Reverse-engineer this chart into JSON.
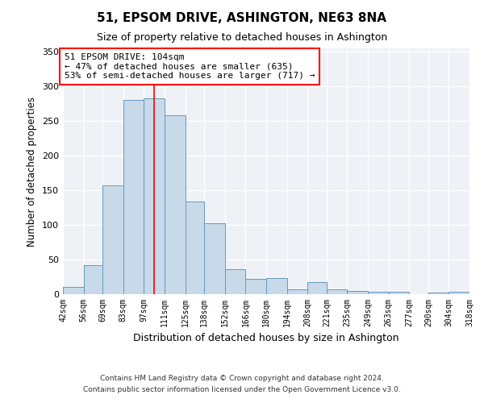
{
  "title": "51, EPSOM DRIVE, ASHINGTON, NE63 8NA",
  "subtitle": "Size of property relative to detached houses in Ashington",
  "xlabel": "Distribution of detached houses by size in Ashington",
  "ylabel": "Number of detached properties",
  "bin_edges": [
    42,
    56,
    69,
    83,
    97,
    111,
    125,
    138,
    152,
    166,
    180,
    194,
    208,
    221,
    235,
    249,
    263,
    277,
    290,
    304,
    318
  ],
  "bin_labels": [
    "42sqm",
    "56sqm",
    "69sqm",
    "83sqm",
    "97sqm",
    "111sqm",
    "125sqm",
    "138sqm",
    "152sqm",
    "166sqm",
    "180sqm",
    "194sqm",
    "208sqm",
    "221sqm",
    "235sqm",
    "249sqm",
    "263sqm",
    "277sqm",
    "290sqm",
    "304sqm",
    "318sqm"
  ],
  "counts": [
    10,
    42,
    157,
    281,
    283,
    258,
    134,
    103,
    36,
    22,
    23,
    7,
    18,
    7,
    5,
    4,
    3,
    0,
    2,
    3
  ],
  "bar_color": "#c8daea",
  "bar_edge_color": "#6699bb",
  "property_value": 104,
  "vline_color": "red",
  "annotation_line1": "51 EPSOM DRIVE: 104sqm",
  "annotation_line2": "← 47% of detached houses are smaller (635)",
  "annotation_line3": "53% of semi-detached houses are larger (717) →",
  "annotation_box_color": "white",
  "annotation_box_edge_color": "red",
  "ylim": [
    0,
    355
  ],
  "yticks": [
    0,
    50,
    100,
    150,
    200,
    250,
    300,
    350
  ],
  "background_color": "#ffffff",
  "plot_bg_color": "#eef2f7",
  "footnote1": "Contains HM Land Registry data © Crown copyright and database right 2024.",
  "footnote2": "Contains public sector information licensed under the Open Government Licence v3.0."
}
